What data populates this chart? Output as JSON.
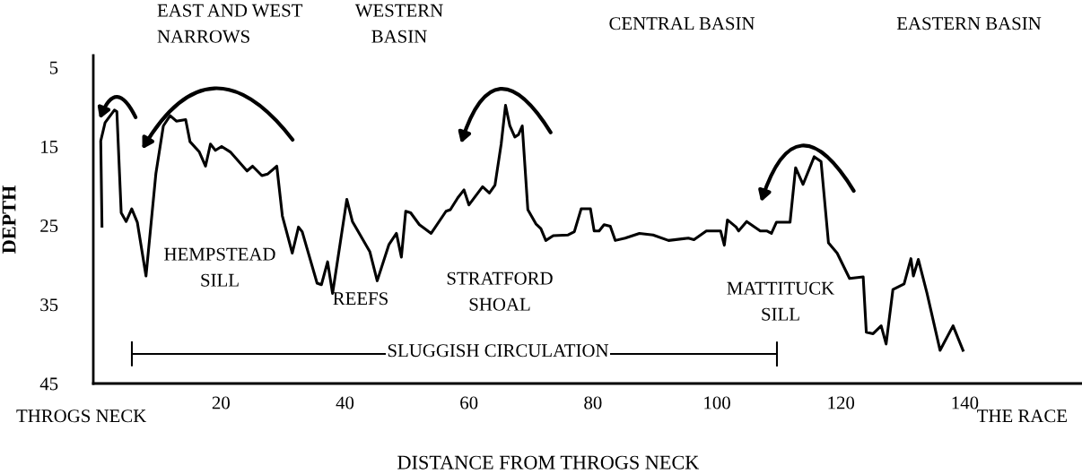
{
  "chart_data": {
    "type": "line",
    "xlabel": "DISTANCE FROM THROGS NECK",
    "ylabel": "DEPTH",
    "xlim": [
      -0.6,
      158.9
    ],
    "xticks": [
      20,
      40,
      60,
      80,
      100,
      120,
      140
    ],
    "ylim": [
      45,
      3.5
    ],
    "yticks": [
      5,
      15,
      25,
      35,
      45
    ],
    "grid": false,
    "legend": false,
    "series": [
      {
        "color": "#000000",
        "x": [
          0.8,
          0.6,
          1.3,
          2.8,
          3.2,
          3.9,
          4.7,
          5.6,
          6.5,
          7.9,
          9.5,
          10.7,
          11.8,
          12.8,
          14.3,
          15.0,
          16.5,
          17.5,
          18.3,
          19.1,
          20.1,
          21.5,
          24.2,
          25.1,
          26.6,
          27.5,
          29.0,
          29.9,
          31.5,
          32.5,
          33.1,
          35.5,
          36.2,
          37.2,
          38.0,
          40.3,
          41.2,
          44.0,
          45.2,
          47.1,
          48.3,
          49.1,
          49.8,
          50.6,
          52.0,
          53.9,
          56.3,
          57.0,
          58.2,
          59.2,
          60.0,
          62.2,
          63.3,
          64.2,
          65.2,
          65.9,
          66.6,
          67.4,
          68.0,
          68.6,
          69.5,
          70.8,
          71.6,
          72.4,
          73.6,
          76.0,
          77.0,
          78.1,
          79.6,
          80.2,
          81.0,
          81.8,
          82.8,
          83.6,
          85.2,
          87.5,
          89.7,
          92.2,
          95.4,
          96.3,
          98.3,
          100.6,
          101.2,
          101.7,
          103.1,
          103.5,
          104.8,
          107.0,
          108.1,
          108.8,
          109.6,
          111.8,
          112.7,
          113.9,
          115.7,
          116.8,
          118.0,
          119.4,
          121.4,
          123.6,
          124.1,
          125.2,
          126.5,
          127.3,
          128.4,
          130.2,
          131.3,
          131.7,
          132.5,
          133.9,
          136.0,
          138.1,
          139.7
        ],
        "values": [
          25.1,
          14.3,
          12.0,
          10.4,
          10.6,
          23.4,
          24.5,
          22.9,
          24.6,
          31.4,
          18.4,
          12.4,
          11.1,
          11.8,
          11.6,
          14.4,
          15.7,
          17.5,
          14.7,
          15.5,
          15.0,
          15.7,
          18.1,
          17.5,
          18.7,
          18.5,
          17.5,
          23.8,
          28.5,
          25.2,
          25.8,
          32.3,
          32.5,
          29.6,
          33.6,
          21.7,
          24.5,
          28.3,
          32.0,
          27.4,
          26.0,
          29.0,
          23.2,
          23.4,
          24.9,
          26.0,
          23.2,
          23.0,
          21.5,
          20.5,
          22.4,
          20.1,
          20.9,
          19.9,
          14.7,
          9.8,
          12.4,
          13.8,
          13.5,
          12.4,
          23.0,
          24.8,
          25.4,
          26.9,
          26.3,
          26.2,
          25.8,
          22.9,
          22.9,
          25.7,
          25.7,
          24.9,
          25.1,
          26.9,
          26.6,
          26.0,
          26.2,
          26.9,
          26.6,
          26.8,
          25.7,
          25.7,
          27.5,
          24.3,
          25.2,
          25.7,
          24.5,
          25.7,
          25.7,
          26.0,
          24.6,
          24.6,
          17.7,
          19.8,
          16.3,
          16.9,
          27.2,
          28.5,
          31.7,
          31.5,
          38.5,
          38.7,
          37.7,
          40.0,
          33.1,
          32.4,
          29.2,
          31.4,
          29.3,
          33.6,
          40.8,
          37.7,
          40.8
        ]
      }
    ],
    "annotations": [
      "HEMPSTEAD\nSILL",
      "REEFS",
      "STRATFORD\nSHOAL",
      "MATTITUCK\nSILL",
      "SLUGGISH CIRCULATION",
      "EAST AND WEST\nNARROWS",
      "WESTERN\nBASIN",
      "CENTRAL BASIN",
      "EASTERN BASIN",
      "THROGS NECK",
      "THE RACE"
    ]
  }
}
